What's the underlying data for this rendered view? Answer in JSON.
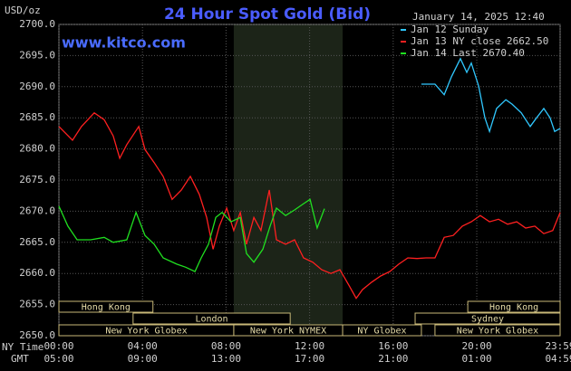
{
  "chart_data": {
    "type": "line",
    "title": "24 Hour Spot Gold (Bid)",
    "unit_label": "USD/oz",
    "site": "www.kitco.com",
    "timestamp": "January 14, 2025 12:40",
    "x_row_labels": [
      "NY Time",
      "GMT"
    ],
    "xlim": [
      0,
      23.99
    ],
    "xticks": [
      {
        "value": 0,
        "label": "00:00"
      },
      {
        "value": 4,
        "label": "04:00"
      },
      {
        "value": 8,
        "label": "08:00"
      },
      {
        "value": 12,
        "label": "12:00"
      },
      {
        "value": 16,
        "label": "16:00"
      },
      {
        "value": 20,
        "label": "20:00"
      },
      {
        "value": 23.99,
        "label": "23:59"
      }
    ],
    "gmt_labels": [
      "05:00",
      "09:00",
      "13:00",
      "17:00",
      "21:00",
      "01:00",
      "04:59"
    ],
    "ylim": [
      2650,
      2700
    ],
    "yticks": [
      {
        "value": 2650,
        "label": "2650.0"
      },
      {
        "value": 2655,
        "label": "2655.0"
      },
      {
        "value": 2660,
        "label": "2660.0"
      },
      {
        "value": 2665,
        "label": "2665.0"
      },
      {
        "value": 2670,
        "label": "2670.0"
      },
      {
        "value": 2675,
        "label": "2675.0"
      },
      {
        "value": 2680,
        "label": "2680.0"
      },
      {
        "value": 2685,
        "label": "2685.0"
      },
      {
        "value": 2690,
        "label": "2690.0"
      },
      {
        "value": 2695,
        "label": "2695.0"
      },
      {
        "value": 2700,
        "label": "2700.0"
      }
    ],
    "grid": true,
    "highlight": [
      8.37,
      13.58
    ],
    "sessions": [
      [
        {
          "name": "Hong Kong",
          "start": 0,
          "end": 4.5
        },
        {
          "name": "Hong Kong",
          "start": 19.57,
          "end": 23.99
        }
      ],
      [
        {
          "name": "London",
          "start": 3.55,
          "end": 11.07
        },
        {
          "name": "Sydney",
          "start": 17.05,
          "end": 23.99
        }
      ],
      [
        {
          "name": "New York Globex",
          "start": 0,
          "end": 8.37
        },
        {
          "name": "New York NYMEX",
          "start": 8.37,
          "end": 13.58
        },
        {
          "name": "NY Globex",
          "start": 13.58,
          "end": 17.35
        },
        {
          "name": "New York Globex",
          "start": 18.0,
          "end": 23.99
        }
      ]
    ],
    "series": [
      {
        "name": "Jan 12 Sunday",
        "color": "#30c8ff",
        "x": [
          17.35,
          18.0,
          18.44,
          18.79,
          19.22,
          19.52,
          19.74,
          20.09,
          20.39,
          20.61,
          20.95,
          21.39,
          21.69,
          22.13,
          22.56,
          22.86,
          23.21,
          23.51,
          23.73,
          23.99
        ],
        "values": [
          2690.4,
          2690.4,
          2688.7,
          2691.6,
          2694.5,
          2692.3,
          2693.8,
          2690.1,
          2685.0,
          2682.8,
          2686.5,
          2687.9,
          2687.2,
          2685.8,
          2683.6,
          2685.0,
          2686.5,
          2685.0,
          2682.8,
          2683.3
        ]
      },
      {
        "name": "Jan 13 NY close 2662.50",
        "color": "#ff2020",
        "x": [
          0,
          0.65,
          1.08,
          1.69,
          2.17,
          2.6,
          2.91,
          3.25,
          3.82,
          4.12,
          4.56,
          4.99,
          5.42,
          5.86,
          6.29,
          6.72,
          7.07,
          7.38,
          7.68,
          8.03,
          8.37,
          8.68,
          8.98,
          9.33,
          9.67,
          10.07,
          10.41,
          10.85,
          11.28,
          11.71,
          12.15,
          12.58,
          13.02,
          13.45,
          13.88,
          14.23,
          14.53,
          14.97,
          15.4,
          15.84,
          16.27,
          16.7,
          17.14,
          17.57,
          18.0,
          18.44,
          18.87,
          19.31,
          19.74,
          20.17,
          20.61,
          21.04,
          21.48,
          21.91,
          22.34,
          22.78,
          23.21,
          23.64,
          23.99
        ],
        "values": [
          2683.6,
          2681.4,
          2683.6,
          2685.8,
          2684.7,
          2682.1,
          2678.5,
          2680.7,
          2683.6,
          2679.9,
          2677.8,
          2675.6,
          2671.9,
          2673.4,
          2675.6,
          2672.7,
          2669.0,
          2663.9,
          2667.6,
          2670.5,
          2666.9,
          2669.8,
          2664.7,
          2669.0,
          2666.9,
          2673.4,
          2665.4,
          2664.7,
          2665.4,
          2662.5,
          2661.8,
          2660.6,
          2660.0,
          2660.6,
          2658.1,
          2656.0,
          2657.4,
          2658.6,
          2659.6,
          2660.3,
          2661.5,
          2662.5,
          2662.4,
          2662.5,
          2662.5,
          2665.8,
          2666.1,
          2667.6,
          2668.3,
          2669.3,
          2668.3,
          2668.7,
          2667.9,
          2668.3,
          2667.3,
          2667.6,
          2666.4,
          2666.9,
          2669.8
        ]
      },
      {
        "name": "Jan 14 Last 2670.40",
        "color": "#20e020",
        "x": [
          0,
          0.43,
          0.87,
          1.52,
          2.17,
          2.6,
          3.25,
          3.69,
          4.12,
          4.56,
          4.99,
          5.64,
          6.07,
          6.51,
          6.81,
          7.16,
          7.51,
          7.81,
          8.24,
          8.68,
          8.98,
          9.33,
          9.76,
          10.11,
          10.41,
          10.85,
          11.28,
          11.71,
          12.02,
          12.36,
          12.71
        ],
        "values": [
          2670.8,
          2667.6,
          2665.4,
          2665.4,
          2665.8,
          2665.0,
          2665.4,
          2669.8,
          2666.1,
          2664.7,
          2662.5,
          2661.5,
          2661.0,
          2660.3,
          2662.5,
          2664.7,
          2669.0,
          2669.8,
          2668.3,
          2669.0,
          2663.2,
          2661.8,
          2663.9,
          2667.6,
          2670.5,
          2669.3,
          2670.2,
          2671.2,
          2671.9,
          2667.3,
          2670.4
        ]
      }
    ]
  }
}
